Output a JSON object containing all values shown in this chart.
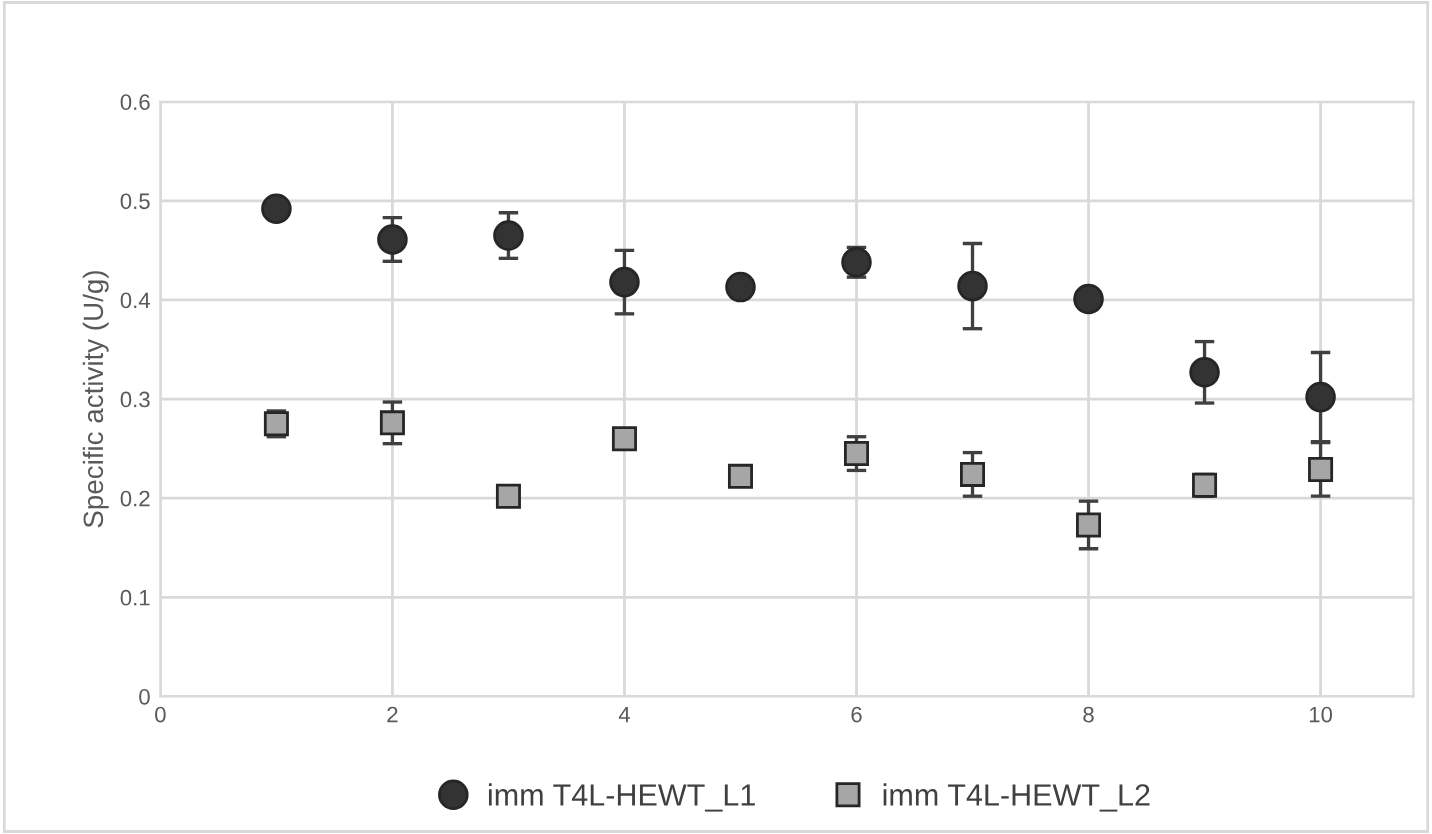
{
  "chart_data": {
    "type": "scatter",
    "ylabel": "Specific activity (U/g)",
    "x": [
      1,
      2,
      3,
      4,
      5,
      6,
      7,
      8,
      9,
      10
    ],
    "series": [
      {
        "name": "imm T4L-HEWT_L1",
        "color": "#333333",
        "marker": "circle",
        "values": [
          0.492,
          0.461,
          0.465,
          0.418,
          0.413,
          0.438,
          0.414,
          0.401,
          0.327,
          0.302
        ],
        "errors": [
          0.008,
          0.022,
          0.023,
          0.032,
          0.01,
          0.015,
          0.043,
          0.01,
          0.031,
          0.045
        ]
      },
      {
        "name": "imm T4L-HEWT_L2",
        "color": "#a6a6a6",
        "marker": "square",
        "values": [
          0.275,
          0.276,
          0.202,
          0.26,
          0.222,
          0.245,
          0.224,
          0.173,
          0.213,
          0.229
        ],
        "errors": [
          0.013,
          0.021,
          0.005,
          0.008,
          0.003,
          0.017,
          0.022,
          0.024,
          0.011,
          0.027
        ]
      }
    ],
    "xlim": [
      0,
      10.8
    ],
    "xticks": [
      0,
      2,
      4,
      6,
      8,
      10
    ],
    "ylim": [
      0,
      0.6
    ],
    "yticks": [
      0,
      0.1,
      0.2,
      0.3,
      0.4,
      0.5,
      0.6
    ],
    "grid": true,
    "legend": "bottom"
  }
}
